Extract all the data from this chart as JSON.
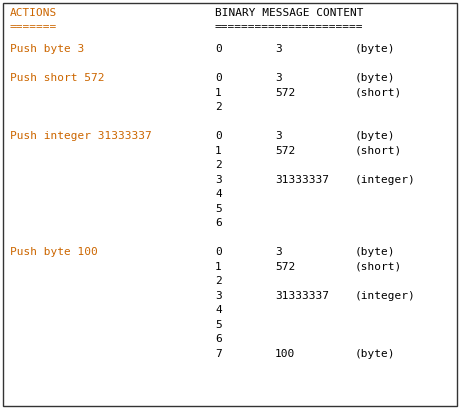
{
  "bg_color": "#ffffff",
  "border_color": "#333333",
  "font_family": "monospace",
  "font_size": 8.0,
  "action_color": "#cc6600",
  "text_color": "#000000",
  "header_actions": "ACTIONS",
  "header_separator_actions": "=======",
  "header_binary": "BINARY MESSAGE CONTENT",
  "header_separator_binary": "======================",
  "sections": [
    {
      "action": "Push byte 3",
      "rows": [
        {
          "index": "0",
          "value": "3",
          "type": "(byte)"
        }
      ]
    },
    {
      "action": "Push short 572",
      "rows": [
        {
          "index": "0",
          "value": "3",
          "type": "(byte)"
        },
        {
          "index": "1",
          "value": "572",
          "type": "(short)"
        },
        {
          "index": "2",
          "value": "",
          "type": ""
        }
      ]
    },
    {
      "action": "Push integer 31333337",
      "rows": [
        {
          "index": "0",
          "value": "3",
          "type": "(byte)"
        },
        {
          "index": "1",
          "value": "572",
          "type": "(short)"
        },
        {
          "index": "2",
          "value": "",
          "type": ""
        },
        {
          "index": "3",
          "value": "31333337",
          "type": "(integer)"
        },
        {
          "index": "4",
          "value": "",
          "type": ""
        },
        {
          "index": "5",
          "value": "",
          "type": ""
        },
        {
          "index": "6",
          "value": "",
          "type": ""
        }
      ]
    },
    {
      "action": "Push byte 100",
      "rows": [
        {
          "index": "0",
          "value": "3",
          "type": "(byte)"
        },
        {
          "index": "1",
          "value": "572",
          "type": "(short)"
        },
        {
          "index": "2",
          "value": "",
          "type": ""
        },
        {
          "index": "3",
          "value": "31333337",
          "type": "(integer)"
        },
        {
          "index": "4",
          "value": "",
          "type": ""
        },
        {
          "index": "5",
          "value": "",
          "type": ""
        },
        {
          "index": "6",
          "value": "",
          "type": ""
        },
        {
          "index": "7",
          "value": "100",
          "type": "(byte)"
        }
      ]
    }
  ]
}
